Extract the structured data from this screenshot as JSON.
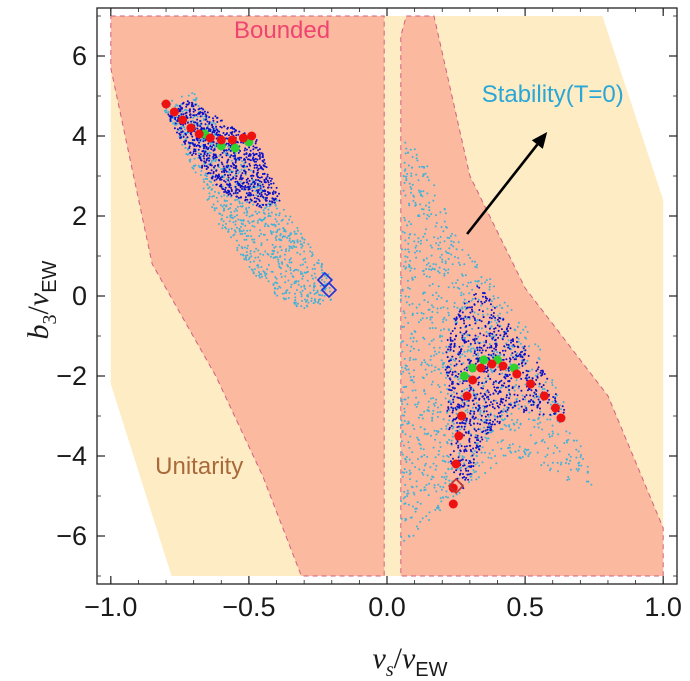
{
  "chart_data": {
    "type": "scatter",
    "xlabel": {
      "main": "v",
      "sub": "s",
      "over": "v",
      "over_sub": "EW"
    },
    "ylabel": {
      "main": "b",
      "sub": "3",
      "over": "v",
      "over_sub": "EW"
    },
    "xlim": [
      -1.05,
      1.05
    ],
    "ylim": [
      -7.2,
      7.2
    ],
    "x_ticks": [
      -1.0,
      -0.5,
      0.0,
      0.5,
      1.0
    ],
    "x_tick_labels": [
      "−1.0",
      "−0.5",
      "0.0",
      "0.5",
      "1.0"
    ],
    "y_ticks": [
      -6,
      -4,
      -2,
      0,
      2,
      4,
      6
    ],
    "y_tick_labels": [
      "−6",
      "−4",
      "−2",
      "0",
      "2",
      "4",
      "6"
    ],
    "grid": false,
    "regions": [
      {
        "name": "Unitarity",
        "color": "#fdecc4",
        "polygons": [
          [
            [
              -1.0,
              7.0
            ],
            [
              0.78,
              7.0
            ],
            [
              1.0,
              2.4
            ],
            [
              1.0,
              -7.0
            ],
            [
              -0.78,
              -7.0
            ],
            [
              -1.0,
              -2.2
            ]
          ]
        ]
      },
      {
        "name": "Bounded",
        "color": "#fbb9a0",
        "polygons": [
          [
            [
              -1.0,
              7.0
            ],
            [
              -0.01,
              7.0
            ],
            [
              -0.01,
              -7.0
            ],
            [
              -0.31,
              -7.0
            ],
            [
              -0.45,
              -4.5
            ],
            [
              -0.62,
              -2.0
            ],
            [
              -0.85,
              0.8
            ],
            [
              -1.0,
              5.7
            ]
          ],
          [
            [
              0.07,
              7.0
            ],
            [
              0.17,
              7.0
            ],
            [
              0.3,
              3.0
            ],
            [
              0.5,
              0.2
            ],
            [
              0.8,
              -2.5
            ],
            [
              1.0,
              -5.8
            ],
            [
              1.0,
              -7.0
            ],
            [
              0.05,
              -7.0
            ],
            [
              0.05,
              6.5
            ]
          ]
        ]
      }
    ],
    "series": [
      {
        "name": "Stability(T=0)",
        "color": "#3fb3d8",
        "regions": [
          [
            [
              -0.82,
              4.8
            ],
            [
              -0.7,
              5.1
            ],
            [
              -0.55,
              3.6
            ],
            [
              -0.35,
              2.0
            ],
            [
              -0.2,
              0.5
            ],
            [
              -0.2,
              -0.1
            ],
            [
              -0.3,
              -0.4
            ],
            [
              -0.45,
              0.2
            ],
            [
              -0.62,
              1.9
            ],
            [
              -0.75,
              3.9
            ]
          ],
          [
            [
              0.06,
              4.0
            ],
            [
              0.12,
              3.7
            ],
            [
              0.25,
              1.5
            ],
            [
              0.4,
              0.2
            ],
            [
              0.55,
              -1.2
            ],
            [
              0.68,
              -3.2
            ],
            [
              0.75,
              -4.8
            ],
            [
              0.6,
              -4.5
            ],
            [
              0.45,
              -4.0
            ],
            [
              0.3,
              -4.7
            ],
            [
              0.05,
              -6.3
            ],
            [
              0.05,
              0.0
            ]
          ]
        ]
      },
      {
        "name": "",
        "color": "#0a10c8",
        "regions": [
          [
            [
              -0.8,
              4.6
            ],
            [
              -0.72,
              4.9
            ],
            [
              -0.55,
              4.2
            ],
            [
              -0.47,
              3.9
            ],
            [
              -0.38,
              2.4
            ],
            [
              -0.45,
              2.2
            ],
            [
              -0.6,
              2.6
            ],
            [
              -0.75,
              3.9
            ]
          ],
          [
            [
              0.22,
              -0.8
            ],
            [
              0.33,
              0.3
            ],
            [
              0.43,
              -0.6
            ],
            [
              0.55,
              -1.7
            ],
            [
              0.65,
              -2.9
            ],
            [
              0.6,
              -3.0
            ],
            [
              0.45,
              -2.9
            ],
            [
              0.35,
              -3.6
            ],
            [
              0.28,
              -4.9
            ],
            [
              0.23,
              -4.3
            ],
            [
              0.21,
              -2.0
            ]
          ]
        ]
      },
      {
        "name": "",
        "color": "#2ed12e",
        "points": [
          [
            -0.66,
            4.05
          ],
          [
            -0.6,
            3.75
          ],
          [
            -0.55,
            3.7
          ],
          [
            -0.5,
            3.85
          ],
          [
            0.28,
            -2.0
          ],
          [
            0.31,
            -1.8
          ],
          [
            0.35,
            -1.6
          ],
          [
            0.4,
            -1.6
          ],
          [
            0.46,
            -1.8
          ],
          [
            0.27,
            -3.0
          ]
        ]
      },
      {
        "name": "",
        "color": "#ee1111",
        "points": [
          [
            -0.8,
            4.8
          ],
          [
            -0.77,
            4.6
          ],
          [
            -0.74,
            4.4
          ],
          [
            -0.71,
            4.2
          ],
          [
            -0.68,
            4.05
          ],
          [
            -0.64,
            3.95
          ],
          [
            -0.6,
            3.9
          ],
          [
            -0.56,
            3.9
          ],
          [
            -0.52,
            3.95
          ],
          [
            -0.49,
            4.0
          ],
          [
            0.24,
            -5.2
          ],
          [
            0.24,
            -4.8
          ],
          [
            0.25,
            -4.2
          ],
          [
            0.26,
            -3.5
          ],
          [
            0.27,
            -3.0
          ],
          [
            0.29,
            -2.5
          ],
          [
            0.31,
            -2.1
          ],
          [
            0.34,
            -1.8
          ],
          [
            0.38,
            -1.7
          ],
          [
            0.42,
            -1.75
          ],
          [
            0.47,
            -1.95
          ],
          [
            0.52,
            -2.2
          ],
          [
            0.57,
            -2.5
          ],
          [
            0.61,
            -2.8
          ],
          [
            0.63,
            -3.05
          ]
        ]
      },
      {
        "name": "",
        "color": "#1e32dd",
        "marker": "diamond",
        "points": [
          [
            -0.225,
            0.4
          ],
          [
            -0.21,
            0.15
          ]
        ]
      },
      {
        "name": "",
        "color": "#c23030",
        "marker": "diamond",
        "points": [
          [
            0.25,
            -4.75
          ]
        ]
      }
    ],
    "annotations": [
      {
        "text": "Bounded",
        "at": [
          -0.38,
          6.45
        ],
        "color": "#ef4470"
      },
      {
        "text": "Stability(T=0)",
        "at": [
          0.6,
          4.85
        ],
        "color": "#2aa7d6"
      },
      {
        "text": "Unitarity",
        "at": [
          -0.68,
          -4.45
        ],
        "color": "#a9693a"
      }
    ],
    "arrows": [
      {
        "from": [
          0.29,
          1.55
        ],
        "to": [
          0.58,
          4.1
        ],
        "color": "#000000"
      }
    ]
  }
}
